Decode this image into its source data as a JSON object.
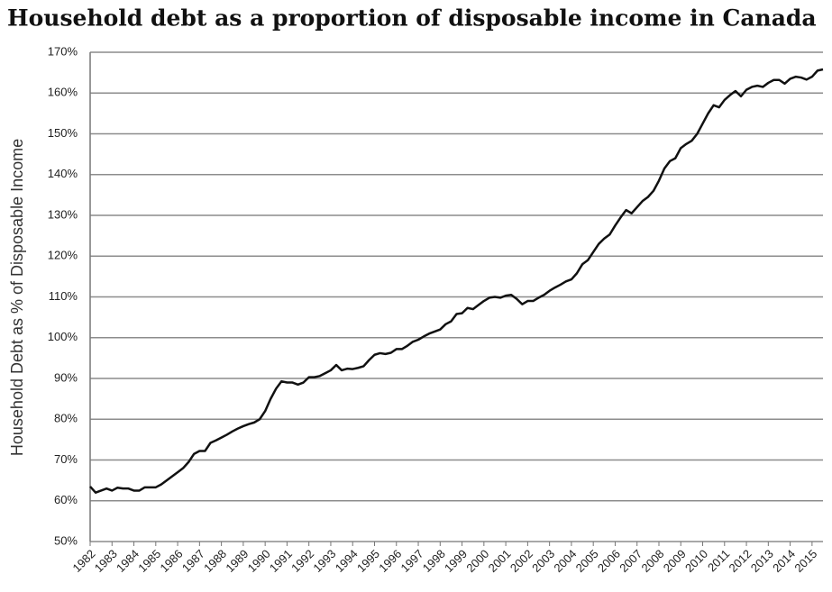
{
  "chart_data": {
    "type": "line",
    "title": "Household debt as a proportion of disposable income in Canada",
    "y_label": "Household Debt as % of Disposable Income",
    "categories": [
      "1982",
      null,
      null,
      null,
      "1983",
      null,
      null,
      null,
      "1984",
      null,
      null,
      null,
      "1985",
      null,
      null,
      null,
      "1986",
      null,
      null,
      null,
      "1987",
      null,
      null,
      null,
      "1988",
      null,
      null,
      null,
      "1989",
      null,
      null,
      null,
      "1990",
      null,
      null,
      null,
      "1991",
      null,
      null,
      null,
      "1992",
      null,
      null,
      null,
      "1993",
      null,
      null,
      null,
      "1994",
      null,
      null,
      null,
      "1995",
      null,
      null,
      null,
      "1996",
      null,
      null,
      null,
      "1997",
      null,
      null,
      null,
      "1998",
      null,
      null,
      null,
      "1999",
      null,
      null,
      null,
      "2000",
      null,
      null,
      null,
      "2001",
      null,
      null,
      null,
      "2002",
      null,
      null,
      null,
      "2003",
      null,
      null,
      null,
      "2004",
      null,
      null,
      null,
      "2005",
      null,
      null,
      null,
      "2006",
      null,
      null,
      null,
      "2007",
      null,
      null,
      null,
      "2008",
      null,
      null,
      null,
      "2009",
      null,
      null,
      null,
      "2010",
      null,
      null,
      null,
      "2011",
      null,
      null,
      null,
      "2012",
      null,
      null,
      null,
      "2013",
      null,
      null,
      null,
      "2014",
      null,
      null,
      null,
      "2015",
      null,
      null
    ],
    "values": [
      63.5,
      62,
      62.5,
      63,
      62.5,
      63.2,
      63,
      63,
      62.5,
      62.5,
      63.3,
      63.3,
      63.3,
      64,
      65,
      66,
      67,
      68,
      69.5,
      71.5,
      72.2,
      72.2,
      74.2,
      74.8,
      75.5,
      76.2,
      77,
      77.7,
      78.3,
      78.8,
      79.2,
      80,
      82,
      85,
      87.5,
      89.3,
      89,
      89,
      88.5,
      89,
      90.3,
      90.3,
      90.6,
      91.3,
      92,
      93.3,
      92,
      92.4,
      92.3,
      92.6,
      93,
      94.5,
      95.8,
      96.2,
      96,
      96.3,
      97.2,
      97.2,
      98,
      99,
      99.5,
      100.3,
      101,
      101.5,
      102,
      103.3,
      104,
      105.8,
      106,
      107.3,
      107,
      108,
      109,
      109.8,
      110,
      109.8,
      110.3,
      110.5,
      109.5,
      108.2,
      109,
      109,
      109.8,
      110.5,
      111.5,
      112.3,
      113,
      113.8,
      114.3,
      115.8,
      118,
      119,
      121,
      123,
      124.3,
      125.3,
      127.5,
      129.5,
      131.3,
      130.5,
      132,
      133.5,
      134.5,
      136,
      138.5,
      141.5,
      143.3,
      144,
      146.5,
      147.5,
      148.3,
      150,
      152.5,
      155,
      157,
      156.5,
      158.3,
      159.5,
      160.5,
      159.2,
      160.8,
      161.5,
      161.8,
      161.5,
      162.5,
      163.2,
      163.2,
      162.3,
      163.5,
      164,
      163.8,
      163.3,
      164,
      165.5,
      165.8
    ],
    "color": "#111111",
    "ylim": [
      50,
      170
    ],
    "yticks": [
      {
        "value": 50,
        "label": "50%"
      },
      {
        "value": 60,
        "label": "60%"
      },
      {
        "value": 70,
        "label": "70%"
      },
      {
        "value": 80,
        "label": "80%"
      },
      {
        "value": 90,
        "label": "90%"
      },
      {
        "value": 100,
        "label": "100%"
      },
      {
        "value": 110,
        "label": "110%"
      },
      {
        "value": 120,
        "label": "120%"
      },
      {
        "value": 130,
        "label": "130%"
      },
      {
        "value": 140,
        "label": "140%"
      },
      {
        "value": 150,
        "label": "150%"
      },
      {
        "value": 160,
        "label": "160%"
      },
      {
        "value": 170,
        "label": "170%"
      }
    ],
    "grid": true
  }
}
